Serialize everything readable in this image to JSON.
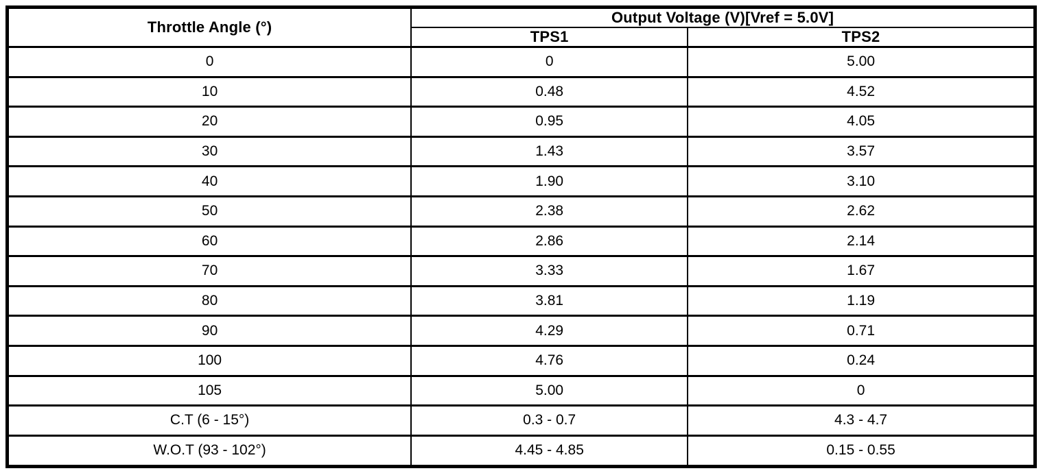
{
  "table": {
    "headers": {
      "throttle_angle": "Throttle Angle (°)",
      "output_voltage_group": "Output Voltage (V)[Vref = 5.0V]",
      "tps1": "TPS1",
      "tps2": "TPS2"
    },
    "rows": [
      {
        "angle": "0",
        "tps1": "0",
        "tps2": "5.00"
      },
      {
        "angle": "10",
        "tps1": "0.48",
        "tps2": "4.52"
      },
      {
        "angle": "20",
        "tps1": "0.95",
        "tps2": "4.05"
      },
      {
        "angle": "30",
        "tps1": "1.43",
        "tps2": "3.57"
      },
      {
        "angle": "40",
        "tps1": "1.90",
        "tps2": "3.10"
      },
      {
        "angle": "50",
        "tps1": "2.38",
        "tps2": "2.62"
      },
      {
        "angle": "60",
        "tps1": "2.86",
        "tps2": "2.14"
      },
      {
        "angle": "70",
        "tps1": "3.33",
        "tps2": "1.67"
      },
      {
        "angle": "80",
        "tps1": "3.81",
        "tps2": "1.19"
      },
      {
        "angle": "90",
        "tps1": "4.29",
        "tps2": "0.71"
      },
      {
        "angle": "100",
        "tps1": "4.76",
        "tps2": "0.24"
      },
      {
        "angle": "105",
        "tps1": "5.00",
        "tps2": "0"
      },
      {
        "angle": "C.T (6 - 15°)",
        "tps1": "0.3 - 0.7",
        "tps2": "4.3 - 4.7"
      },
      {
        "angle": "W.O.T (93 - 102°)",
        "tps1": "4.45 - 4.85",
        "tps2": "0.15 - 0.55"
      }
    ],
    "colors": {
      "border": "#000000",
      "background": "#ffffff",
      "text": "#000000"
    }
  }
}
